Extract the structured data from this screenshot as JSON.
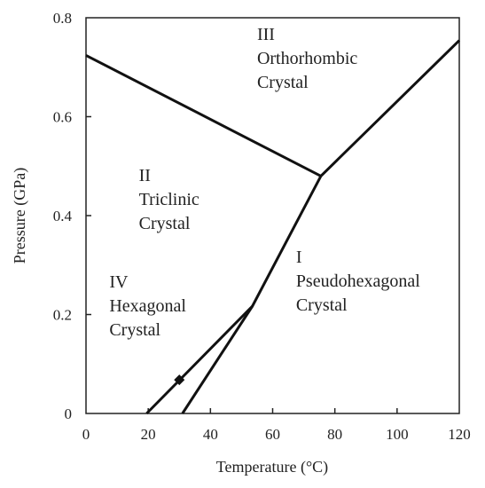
{
  "chart_data": {
    "type": "line",
    "xlabel": "Temperature (°C)",
    "ylabel": "Pressure (GPa)",
    "xlim": [
      0,
      120
    ],
    "ylim": [
      0,
      0.8
    ],
    "x_ticks": [
      "0",
      "20",
      "40",
      "60",
      "80",
      "100",
      "120"
    ],
    "y_ticks": [
      "0",
      "0.2",
      "0.4",
      "0.6",
      "0.8"
    ],
    "grid": false,
    "series": [
      {
        "points": [
          [
            0,
            0.724
          ],
          [
            75.5,
            0.48
          ]
        ]
      },
      {
        "points": [
          [
            75.5,
            0.48
          ],
          [
            120,
            0.754
          ]
        ]
      },
      {
        "points": [
          [
            31,
            0
          ],
          [
            53.5,
            0.217
          ],
          [
            75.5,
            0.48
          ]
        ]
      },
      {
        "points": [
          [
            19.5,
            0
          ],
          [
            53.5,
            0.217
          ]
        ]
      }
    ],
    "marker": {
      "x": 30,
      "y": 0.068
    },
    "regions": [
      {
        "lines": [
          "III",
          "Orthorhombic",
          "Crystal"
        ],
        "x": 55,
        "y": 0.755
      },
      {
        "lines": [
          "II",
          "Triclinic",
          "Crystal"
        ],
        "x": 17,
        "y": 0.47
      },
      {
        "lines": [
          "I",
          "Pseudohexagonal",
          "Crystal"
        ],
        "x": 67.5,
        "y": 0.305
      },
      {
        "lines": [
          "IV",
          "Hexagonal",
          "Crystal"
        ],
        "x": 7.5,
        "y": 0.255
      }
    ]
  }
}
